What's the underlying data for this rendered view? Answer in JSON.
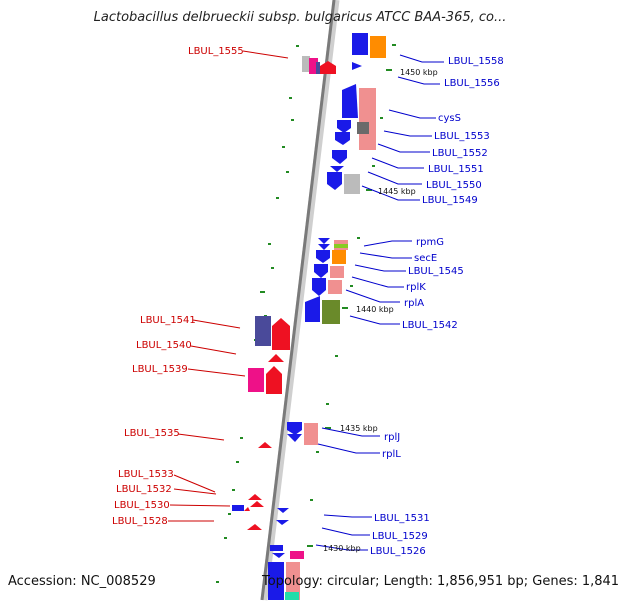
{
  "title": "Lactobacillus delbrueckii subsp. bulgaricus ATCC BAA-365, co...",
  "footer": {
    "accession": "Accession: NC_008529",
    "topology": "Topology: circular; Length: 1,856,951 bp; Genes: 1,841"
  },
  "colors": {
    "blue": "#1a1ae8",
    "red": "#ee1122",
    "pink": "#f09090",
    "orange": "#ff8c00",
    "olive": "#6a8a2a",
    "purple": "#4a4a9a",
    "magenta": "#ee1188",
    "gray": "#bbbbbb",
    "green": "#22aa22",
    "label_blue": "#0000cc",
    "label_red": "#cc0000"
  },
  "kbp_markers": [
    "1450 kbp",
    "1445 kbp",
    "1440 kbp",
    "1435 kbp",
    "1430 kbp"
  ],
  "right_labels": [
    "LBUL_1558",
    "LBUL_1556",
    "cysS",
    "LBUL_1553",
    "LBUL_1552",
    "LBUL_1551",
    "LBUL_1550",
    "LBUL_1549",
    "rpmG",
    "secE",
    "LBUL_1545",
    "rplK",
    "rplA",
    "LBUL_1542",
    "rplJ",
    "rplL",
    "LBUL_1531",
    "LBUL_1529",
    "LBUL_1526"
  ],
  "left_labels": [
    "LBUL_1555",
    "LBUL_1541",
    "LBUL_1540",
    "LBUL_1539",
    "LBUL_1535",
    "LBUL_1533",
    "LBUL_1532",
    "LBUL_1530",
    "LBUL_1528"
  ]
}
